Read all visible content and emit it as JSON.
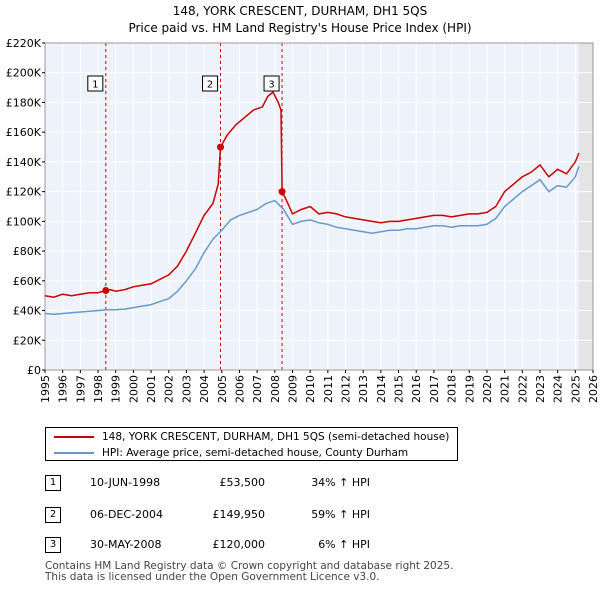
{
  "chart_data": {
    "type": "line",
    "title": "148, YORK CRESCENT, DURHAM, DH1 5QS",
    "subtitle": "Price paid vs. HM Land Registry's House Price Index (HPI)",
    "xlim": [
      1995,
      2026
    ],
    "ylim": [
      0,
      220000
    ],
    "x_ticks": [
      "1995",
      "1996",
      "1997",
      "1998",
      "1999",
      "2000",
      "2001",
      "2002",
      "2003",
      "2004",
      "2005",
      "2006",
      "2007",
      "2008",
      "2009",
      "2010",
      "2011",
      "2012",
      "2013",
      "2014",
      "2015",
      "2016",
      "2017",
      "2018",
      "2019",
      "2020",
      "2021",
      "2022",
      "2023",
      "2024",
      "2025",
      "2026"
    ],
    "y_ticks": [
      {
        "value": 0,
        "label": "£0"
      },
      {
        "value": 20000,
        "label": "£20K"
      },
      {
        "value": 40000,
        "label": "£40K"
      },
      {
        "value": 60000,
        "label": "£60K"
      },
      {
        "value": 80000,
        "label": "£80K"
      },
      {
        "value": 100000,
        "label": "£100K"
      },
      {
        "value": 120000,
        "label": "£120K"
      },
      {
        "value": 140000,
        "label": "£140K"
      },
      {
        "value": 160000,
        "label": "£160K"
      },
      {
        "value": 180000,
        "label": "£180K"
      },
      {
        "value": 200000,
        "label": "£200K"
      },
      {
        "value": 220000,
        "label": "£220K"
      }
    ],
    "forecast_from": 2025.2,
    "series": [
      {
        "name": "148, YORK CRESCENT, DURHAM, DH1 5QS (semi-detached house)",
        "color": "#cc0000",
        "x": [
          1995.0,
          1995.5,
          1996.0,
          1996.5,
          1997.0,
          1997.5,
          1998.0,
          1998.44,
          1998.7,
          1999.0,
          1999.5,
          2000.0,
          2000.5,
          2001.0,
          2001.5,
          2002.0,
          2002.5,
          2003.0,
          2003.5,
          2004.0,
          2004.5,
          2004.8,
          2004.93,
          2005.3,
          2005.8,
          2006.3,
          2006.8,
          2007.3,
          2007.6,
          2007.9,
          2008.2,
          2008.35,
          2008.41,
          2008.7,
          2009.0,
          2009.5,
          2010.0,
          2010.5,
          2011.0,
          2011.5,
          2012.0,
          2012.5,
          2013.0,
          2013.5,
          2014.0,
          2014.5,
          2015.0,
          2015.5,
          2016.0,
          2016.5,
          2017.0,
          2017.5,
          2018.0,
          2018.5,
          2019.0,
          2019.5,
          2020.0,
          2020.5,
          2021.0,
          2021.5,
          2022.0,
          2022.5,
          2023.0,
          2023.5,
          2024.0,
          2024.5,
          2025.0,
          2025.2
        ],
        "values": [
          50000,
          49000,
          51000,
          50000,
          51000,
          52000,
          52000,
          53500,
          54000,
          53000,
          54000,
          56000,
          57000,
          58000,
          61000,
          64000,
          70000,
          80000,
          92000,
          104000,
          112000,
          125000,
          149950,
          158000,
          165000,
          170000,
          175000,
          177000,
          184000,
          187000,
          180000,
          175000,
          120000,
          113000,
          105000,
          108000,
          110000,
          105000,
          106000,
          105000,
          103000,
          102000,
          101000,
          100000,
          99000,
          100000,
          100000,
          101000,
          102000,
          103000,
          104000,
          104000,
          103000,
          104000,
          105000,
          105000,
          106000,
          110000,
          120000,
          125000,
          130000,
          133000,
          138000,
          130000,
          135000,
          132000,
          140000,
          146000
        ]
      },
      {
        "name": "HPI: Average price, semi-detached house, County Durham",
        "color": "#6699cc",
        "x": [
          1995.0,
          1995.5,
          1996.0,
          1996.5,
          1997.0,
          1997.5,
          1998.0,
          1998.5,
          1999.0,
          1999.5,
          2000.0,
          2000.5,
          2001.0,
          2001.5,
          2002.0,
          2002.5,
          2003.0,
          2003.5,
          2004.0,
          2004.5,
          2005.0,
          2005.5,
          2006.0,
          2006.5,
          2007.0,
          2007.5,
          2008.0,
          2008.5,
          2009.0,
          2009.5,
          2010.0,
          2010.5,
          2011.0,
          2011.5,
          2012.0,
          2012.5,
          2013.0,
          2013.5,
          2014.0,
          2014.5,
          2015.0,
          2015.5,
          2016.0,
          2016.5,
          2017.0,
          2017.5,
          2018.0,
          2018.5,
          2019.0,
          2019.5,
          2020.0,
          2020.5,
          2021.0,
          2021.5,
          2022.0,
          2022.5,
          2023.0,
          2023.5,
          2024.0,
          2024.5,
          2025.0,
          2025.2
        ],
        "values": [
          38000,
          37500,
          38000,
          38500,
          39000,
          39500,
          40000,
          40500,
          40500,
          41000,
          42000,
          43000,
          44000,
          46000,
          48000,
          53000,
          60000,
          68000,
          79000,
          88000,
          94000,
          101000,
          104000,
          106000,
          108000,
          112000,
          114000,
          108000,
          98000,
          100000,
          101000,
          99000,
          98000,
          96000,
          95000,
          94000,
          93000,
          92000,
          93000,
          94000,
          94000,
          95000,
          95000,
          96000,
          97000,
          97000,
          96000,
          97000,
          97000,
          97000,
          98000,
          102000,
          110000,
          115000,
          120000,
          124000,
          128000,
          120000,
          124000,
          123000,
          130000,
          137000
        ]
      }
    ],
    "sale_markers": [
      {
        "label": "1",
        "x": 1998.44,
        "value": 53500
      },
      {
        "label": "2",
        "x": 2004.93,
        "value": 149950
      },
      {
        "label": "3",
        "x": 2008.41,
        "value": 120000
      }
    ]
  },
  "legend": {
    "property_label": "148, YORK CRESCENT, DURHAM, DH1 5QS (semi-detached house)",
    "hpi_label": "HPI: Average price, semi-detached house, County Durham"
  },
  "sales": [
    {
      "num": "1",
      "date": "10-JUN-1998",
      "price": "£53,500",
      "hpi": "34% ↑ HPI"
    },
    {
      "num": "2",
      "date": "06-DEC-2004",
      "price": "£149,950",
      "hpi": "59% ↑ HPI"
    },
    {
      "num": "3",
      "date": "30-MAY-2008",
      "price": "£120,000",
      "hpi": "6% ↑ HPI"
    }
  ],
  "footer": {
    "line1": "Contains HM Land Registry data © Crown copyright and database right 2025.",
    "line2": "This data is licensed under the Open Government Licence v3.0."
  },
  "colors": {
    "property": "#cc0000",
    "hpi": "#6699cc",
    "plot_bg": "#eef2fa",
    "highlight_bg": "#dde6f4"
  }
}
